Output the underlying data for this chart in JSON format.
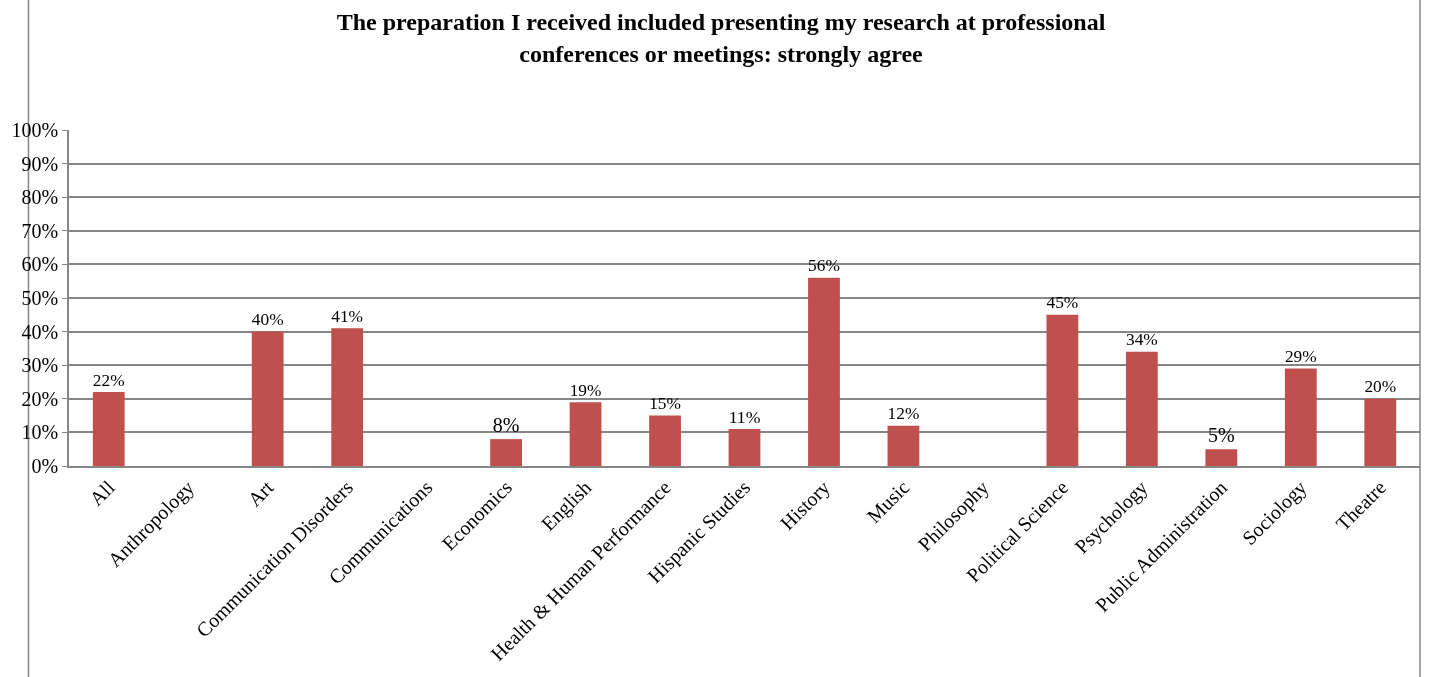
{
  "chart_data": {
    "type": "bar",
    "title": "The preparation I received included presenting my research at professional\nconferences or meetings: strongly agree",
    "categories": [
      "All",
      "Anthropology",
      "Art",
      "Communication Disorders",
      "Communications",
      "Economics",
      "English",
      "Health & Human Performance",
      "Hispanic Studies",
      "History",
      "Music",
      "Philosophy",
      "Political Science",
      "Psychology",
      "Public Administration",
      "Sociology",
      "Theatre"
    ],
    "values": [
      22,
      null,
      40,
      41,
      null,
      8,
      19,
      15,
      11,
      56,
      12,
      null,
      45,
      34,
      5,
      29,
      20
    ],
    "value_labels": [
      "22%",
      null,
      "40%",
      "41%",
      null,
      "8%",
      "19%",
      "15%",
      "11%",
      "56%",
      "12%",
      null,
      "45%",
      "34%",
      "5%",
      "29%",
      "20%"
    ],
    "color": "#c0504d",
    "ylim": [
      0,
      100
    ],
    "yticks": [
      {
        "value": 0,
        "label": "0%"
      },
      {
        "value": 10,
        "label": "10%"
      },
      {
        "value": 20,
        "label": "20%"
      },
      {
        "value": 30,
        "label": "30%"
      },
      {
        "value": 40,
        "label": "40%"
      },
      {
        "value": 50,
        "label": "50%"
      },
      {
        "value": 60,
        "label": "60%"
      },
      {
        "value": 70,
        "label": "70%"
      },
      {
        "value": 80,
        "label": "80%"
      },
      {
        "value": 90,
        "label": "90%"
      },
      {
        "value": 100,
        "label": "100%"
      }
    ],
    "grid": "y",
    "legend": false
  }
}
